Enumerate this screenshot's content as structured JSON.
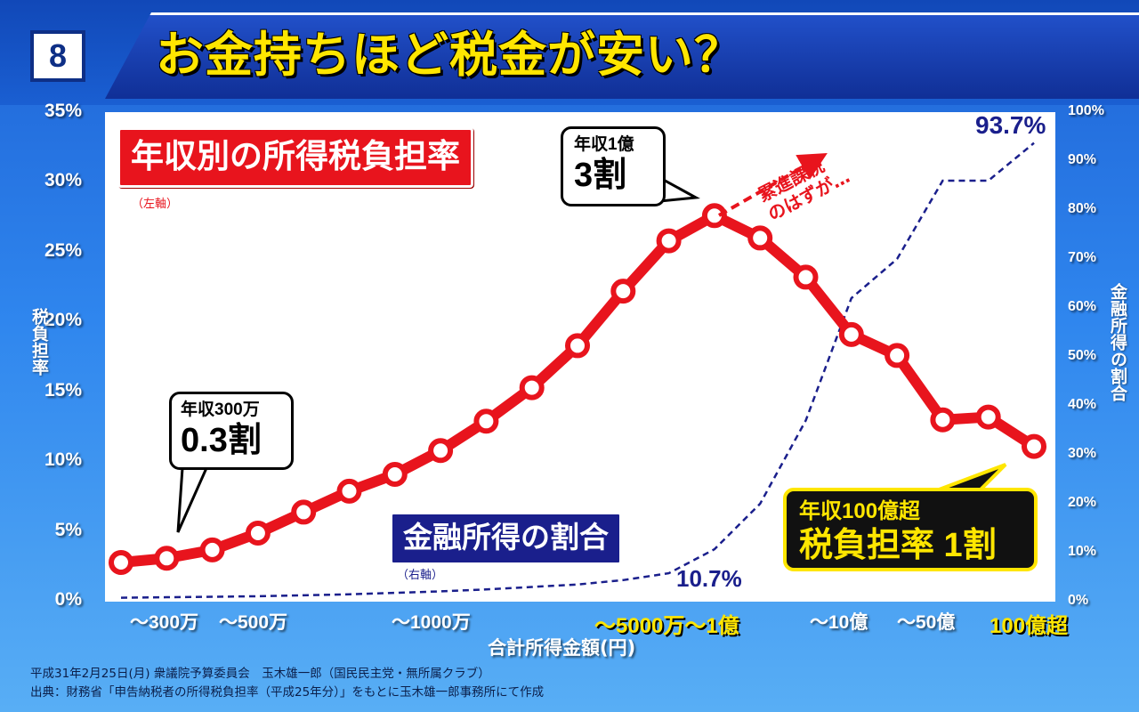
{
  "slide_number": "8",
  "title": "お金持ちほど税金が安い？",
  "colors": {
    "title_text": "#ffe600",
    "tax_line": "#e8141d",
    "financial_line": "#1a1f8c",
    "highlight": "#ffe600"
  },
  "chart_data": {
    "type": "line",
    "xlabel": "合計所得金額(円)",
    "x_tick_labels": [
      {
        "label": "～300万",
        "highlight": false
      },
      {
        "label": "～500万",
        "highlight": false
      },
      {
        "label": "～1000万",
        "highlight": false
      },
      {
        "label": "～5000万～1億",
        "highlight": true
      },
      {
        "label": "～10億",
        "highlight": false
      },
      {
        "label": "～50億",
        "highlight": false
      },
      {
        "label": "100億超",
        "highlight": true
      }
    ],
    "left_axis": {
      "title": "税負担率",
      "ylim": [
        0,
        35
      ],
      "ticks": [
        "0%",
        "5%",
        "10%",
        "15%",
        "20%",
        "25%",
        "30%",
        "35%"
      ]
    },
    "right_axis": {
      "title": "金融所得の割合",
      "ylim": [
        0,
        100
      ],
      "ticks": [
        "0%",
        "10%",
        "20%",
        "30%",
        "40%",
        "50%",
        "60%",
        "70%",
        "80%",
        "90%",
        "100%"
      ]
    },
    "series": [
      {
        "name": "年収別の所得税負担率",
        "axis": "left",
        "style": "solid",
        "values": [
          2.8,
          3.1,
          3.7,
          4.9,
          6.4,
          7.9,
          9.1,
          10.8,
          12.9,
          15.3,
          18.3,
          22.2,
          25.8,
          27.6,
          26.0,
          23.2,
          19.1,
          17.6,
          13.0,
          13.2,
          11.1
        ]
      },
      {
        "name": "金融所得の割合",
        "axis": "right",
        "style": "dashed",
        "values": [
          0.8,
          0.9,
          1.0,
          1.1,
          1.3,
          1.5,
          1.8,
          2.1,
          2.5,
          3.0,
          3.5,
          4.4,
          5.8,
          10.7,
          20.0,
          37.0,
          62.0,
          70.0,
          86.0,
          86.0,
          93.7
        ]
      }
    ],
    "annotations": {
      "series1_label": "年収別の所得税負担率",
      "series1_axis_note": "（左軸）",
      "series2_label": "金融所得の割合",
      "series2_axis_note": "（右軸）",
      "bubble_300": {
        "line1": "年収300万",
        "line2": "0.3割"
      },
      "bubble_1oku": {
        "line1": "年収1億",
        "line2": "3割"
      },
      "bubble_100oku": {
        "line1": "年収100億超",
        "line2": "税負担率 1割"
      },
      "progressive_line1": "累進課税",
      "progressive_line2": "のはずが…",
      "value_10_7": "10.7%",
      "value_93_7": "93.7%"
    }
  },
  "source": {
    "line1": "平成31年2月25日(月) 衆議院予算委員会　玉木雄一郎（国民民主党・無所属クラブ）",
    "line2": "出典：財務省「申告納税者の所得税負担率（平成25年分）」をもとに玉木雄一郎事務所にて作成"
  }
}
